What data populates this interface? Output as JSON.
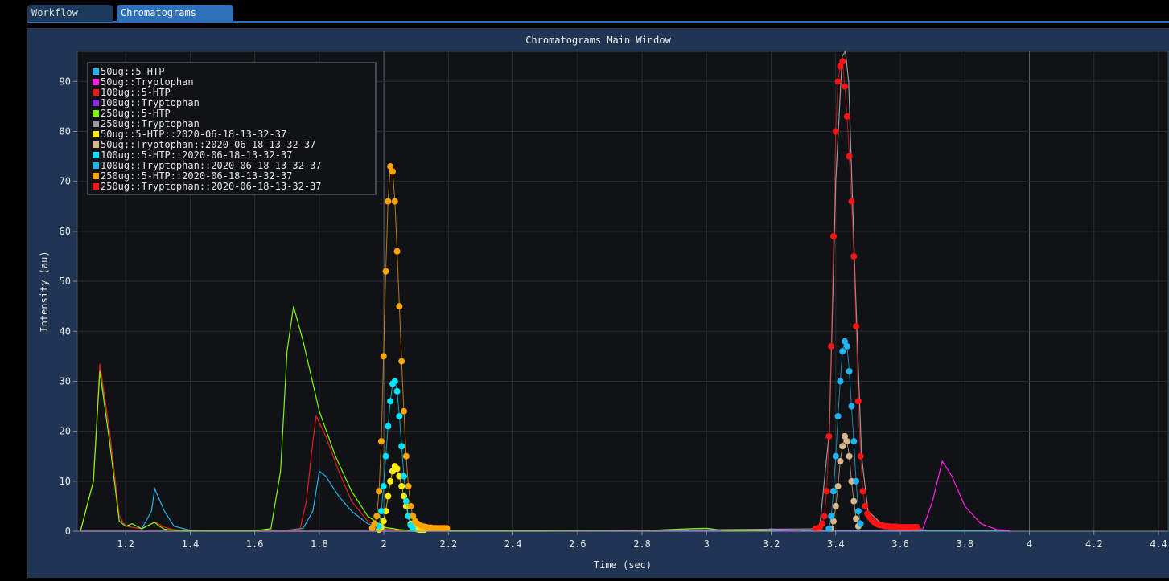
{
  "tabs": [
    {
      "label": "Workflow",
      "active": false
    },
    {
      "label": "Chromatograms",
      "active": true
    }
  ],
  "window": {
    "title": "Chromatograms Main Window"
  },
  "colors": {
    "background": "#000000",
    "panel": "#1f3553",
    "plot_background": "#111215",
    "tab_active": "#2d6fb8",
    "tab_inactive": "#1b3a5c"
  },
  "chart_data": {
    "type": "line",
    "title": "",
    "xlabel": "Time (sec)",
    "ylabel": "Intensity (au)",
    "xlim": [
      1.05,
      4.43
    ],
    "ylim": [
      0,
      96
    ],
    "xticks": [
      "1.2",
      "1.4",
      "1.6",
      "1.8",
      "2",
      "2.2",
      "2.4",
      "2.6",
      "2.8",
      "3",
      "3.2",
      "3.4",
      "3.6",
      "3.8",
      "4",
      "4.2",
      "4.4"
    ],
    "yticks": [
      "0",
      "10",
      "20",
      "30",
      "40",
      "50",
      "60",
      "70",
      "80",
      "90"
    ],
    "grid": true,
    "legend_position": "top-left",
    "series": [
      {
        "name": "50ug::5-HTP",
        "color": "#1fb4f0",
        "style": "line",
        "x": [
          1.06,
          1.1,
          1.12,
          1.15,
          1.18,
          1.2,
          1.25,
          1.28,
          1.29,
          1.3,
          1.32,
          1.35,
          1.4,
          1.45,
          1.5,
          1.6,
          1.7,
          1.75,
          1.78,
          1.8,
          1.82,
          1.86,
          1.9,
          1.95,
          2.0,
          2.02,
          2.06,
          2.1,
          2.2,
          2.3,
          2.6,
          3.0,
          3.5,
          3.94
        ],
        "y": [
          0,
          10,
          33,
          20,
          3,
          1,
          0.5,
          4,
          8.5,
          7,
          4,
          1,
          0.2,
          0.1,
          0.1,
          0.1,
          0.2,
          0.6,
          4,
          12,
          11,
          7,
          4,
          1.5,
          0.5,
          0.3,
          0.2,
          0.1,
          0.1,
          0.1,
          0.1,
          0.1,
          0.1,
          0.1
        ]
      },
      {
        "name": "50ug::Tryptophan",
        "color": "#ff1ee6",
        "style": "line",
        "x": [
          1.06,
          1.5,
          2.0,
          2.5,
          3.0,
          3.5,
          3.63,
          3.67,
          3.7,
          3.73,
          3.76,
          3.8,
          3.85,
          3.9,
          3.94
        ],
        "y": [
          0,
          0,
          0,
          0,
          0,
          0,
          0,
          0.5,
          6,
          14,
          11,
          5,
          1.5,
          0.3,
          0.2
        ]
      },
      {
        "name": "100ug::5-HTP",
        "color": "#ea1818",
        "style": "line",
        "x": [
          1.06,
          1.1,
          1.12,
          1.15,
          1.18,
          1.2,
          1.25,
          1.28,
          1.29,
          1.3,
          1.32,
          1.35,
          1.4,
          1.5,
          1.6,
          1.7,
          1.74,
          1.76,
          1.78,
          1.79,
          1.82,
          1.86,
          1.9,
          1.95,
          2.0,
          2.05,
          2.1,
          2.3
        ],
        "y": [
          0,
          10,
          33.5,
          20,
          3,
          1,
          0.5,
          1.5,
          1.8,
          1.5,
          0.8,
          0.3,
          0.1,
          0.1,
          0.1,
          0.1,
          0.3,
          6,
          18,
          23,
          19,
          12,
          6,
          2,
          0.5,
          0.2,
          0.1,
          0.1
        ]
      },
      {
        "name": "100ug::Tryptophan",
        "color": "#8a2be2",
        "style": "line",
        "x": [
          1.06,
          3.1,
          3.18,
          3.2,
          3.22,
          3.3
        ],
        "y": [
          0,
          0,
          0.3,
          0.5,
          0.3,
          0
        ]
      },
      {
        "name": "250ug::5-HTP",
        "color": "#7cfc00",
        "style": "line",
        "x": [
          1.06,
          1.1,
          1.12,
          1.15,
          1.18,
          1.2,
          1.22,
          1.25,
          1.28,
          1.29,
          1.3,
          1.32,
          1.35,
          1.4,
          1.5,
          1.6,
          1.65,
          1.68,
          1.7,
          1.72,
          1.75,
          1.8,
          1.85,
          1.9,
          1.95,
          2.0,
          2.05,
          2.1,
          2.2,
          2.3,
          2.5,
          2.8,
          2.95,
          3.0,
          3.05,
          3.2
        ],
        "y": [
          0,
          10,
          32,
          18,
          2,
          1,
          1.5,
          0.5,
          1.5,
          1.8,
          1.2,
          0.4,
          0.2,
          0.1,
          0.1,
          0.1,
          0.5,
          12,
          36,
          45,
          38,
          24,
          15,
          8,
          3,
          0.8,
          0.3,
          0.1,
          0.1,
          0.1,
          0.1,
          0.1,
          0.5,
          0.6,
          0.2,
          0.1
        ]
      },
      {
        "name": "250ug::Tryptophan",
        "color": "#9a9a9a",
        "style": "line",
        "x": [
          1.06,
          2.5,
          3.35,
          3.38,
          3.4,
          3.42,
          3.43,
          3.44,
          3.46,
          3.48,
          3.5,
          3.55,
          3.65
        ],
        "y": [
          0,
          0,
          0.5,
          20,
          70,
          95,
          96,
          90,
          50,
          15,
          4,
          1,
          0.2
        ]
      },
      {
        "name": "50ug::5-HTP::2020-06-18-13-32-37",
        "color": "#ffee00",
        "style": "points",
        "x": [
          1.985,
          1.992,
          1.999,
          2.006,
          2.013,
          2.02,
          2.027,
          2.034,
          2.041,
          2.048,
          2.055,
          2.062,
          2.069,
          2.076,
          2.083,
          2.09,
          2.097,
          2.104,
          2.111,
          2.118,
          2.125
        ],
        "y": [
          0.3,
          0.8,
          2,
          4,
          7,
          10,
          12,
          13,
          12.5,
          11,
          9,
          7,
          5,
          3,
          1.5,
          0.8,
          0.5,
          0.4,
          0.3,
          0.3,
          0.3
        ]
      },
      {
        "name": "50ug::Tryptophan::2020-06-18-13-32-37",
        "color": "#d8b88a",
        "style": "points",
        "x": [
          3.386,
          3.393,
          3.4,
          3.407,
          3.414,
          3.421,
          3.428,
          3.435,
          3.442,
          3.449,
          3.456,
          3.463,
          3.47
        ],
        "y": [
          0.5,
          2,
          5,
          9,
          14,
          17,
          19,
          18,
          15,
          10,
          6,
          2.5,
          1
        ]
      },
      {
        "name": "100ug::5-HTP::2020-06-18-13-32-37",
        "color": "#00e5ff",
        "style": "points",
        "x": [
          1.985,
          1.992,
          1.999,
          2.006,
          2.013,
          2.02,
          2.027,
          2.034,
          2.041,
          2.048,
          2.055,
          2.062,
          2.069,
          2.076,
          2.083,
          2.09
        ],
        "y": [
          1,
          4,
          9,
          15,
          21,
          26,
          29.5,
          30,
          28,
          23,
          17,
          11,
          6,
          3,
          1.2,
          0.5
        ]
      },
      {
        "name": "100ug::Tryptophan::2020-06-18-13-32-37",
        "color": "#1fb4f0",
        "style": "points",
        "x": [
          3.379,
          3.386,
          3.393,
          3.4,
          3.407,
          3.414,
          3.421,
          3.428,
          3.435,
          3.442,
          3.449,
          3.456,
          3.463,
          3.47,
          3.477
        ],
        "y": [
          0.5,
          3,
          8,
          15,
          23,
          30,
          36,
          38,
          37,
          32,
          25,
          18,
          10,
          4,
          1.5
        ]
      },
      {
        "name": "250ug::5-HTP::2020-06-18-13-32-37",
        "color": "#ffa500",
        "style": "points",
        "x": [
          1.964,
          1.971,
          1.978,
          1.985,
          1.992,
          1.999,
          2.006,
          2.013,
          2.02,
          2.027,
          2.034,
          2.041,
          2.048,
          2.055,
          2.062,
          2.069,
          2.076,
          2.083,
          2.09,
          2.097,
          2.104,
          2.111,
          2.118,
          2.125,
          2.132,
          2.139,
          2.146,
          2.153,
          2.16,
          2.167,
          2.174,
          2.181,
          2.188,
          2.195
        ],
        "y": [
          0.6,
          1.5,
          3,
          8,
          18,
          35,
          52,
          66,
          73,
          72,
          66,
          56,
          45,
          34,
          24,
          15,
          9,
          5,
          3,
          2,
          1.5,
          1.2,
          1,
          0.9,
          0.8,
          0.7,
          0.7,
          0.6,
          0.6,
          0.6,
          0.6,
          0.6,
          0.6,
          0.6
        ]
      },
      {
        "name": "250ug::Tryptophan::2020-06-18-13-32-37",
        "color": "#ff1414",
        "style": "points",
        "x": [
          3.337,
          3.344,
          3.351,
          3.358,
          3.365,
          3.372,
          3.379,
          3.386,
          3.393,
          3.4,
          3.407,
          3.414,
          3.421,
          3.428,
          3.435,
          3.442,
          3.449,
          3.456,
          3.463,
          3.47,
          3.477,
          3.484,
          3.491,
          3.498,
          3.505,
          3.512,
          3.519,
          3.526,
          3.533,
          3.54,
          3.547,
          3.554,
          3.561,
          3.568,
          3.575,
          3.582,
          3.589,
          3.596,
          3.603,
          3.61,
          3.617,
          3.624,
          3.631,
          3.638,
          3.645,
          3.652
        ],
        "y": [
          0.5,
          0.6,
          0.8,
          1.5,
          3,
          8,
          19,
          37,
          59,
          80,
          90,
          93,
          94,
          89,
          83,
          75,
          66,
          55,
          41,
          26,
          15,
          8,
          5,
          3.5,
          2.8,
          2.2,
          1.8,
          1.5,
          1.3,
          1.2,
          1.1,
          1,
          1,
          0.9,
          0.9,
          0.9,
          0.9,
          0.8,
          0.8,
          0.8,
          0.8,
          0.8,
          0.8,
          0.8,
          0.8,
          0.8
        ]
      }
    ]
  }
}
